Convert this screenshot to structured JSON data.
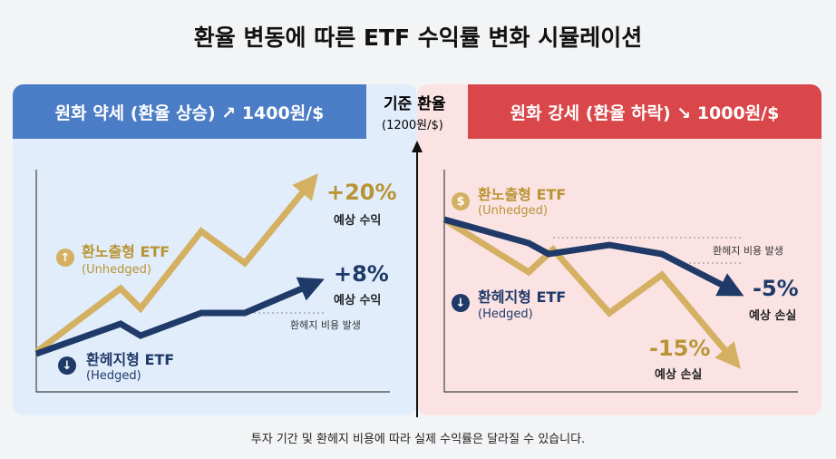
{
  "title": "환율 변동에 따른 ETF 수익률 변화 시뮬레이션",
  "left": {
    "header": "원화 약세 (환율 상승) ↗ 1400원/$",
    "unhedged": {
      "name": "환노출형 ETF",
      "en": "(Unhedged)",
      "value": "+20%",
      "caption": "예상 수익"
    },
    "hedged": {
      "name": "환헤지형 ETF",
      "en": "(Hedged)",
      "value": "+8%",
      "caption": "예상 수익"
    },
    "note": "환헤지 비용 발생"
  },
  "center": {
    "label": "기준 환율",
    "rate": "(1200원/$)"
  },
  "right": {
    "header": "원화 강세 (환율 하락) ↘ 1000원/$",
    "unhedged": {
      "name": "환노출형 ETF",
      "en": "(Unhedged)",
      "value": "-15%",
      "caption": "예상 손실"
    },
    "hedged": {
      "name": "환헤지형 ETF",
      "en": "(Hedged)",
      "value": "-5%",
      "caption": "예상 손실"
    },
    "note": "환헤지 비용 발생"
  },
  "footer": "투자 기간 및 환헤지 비용에 따라 실제 수익률은 달라질 수 있습니다.",
  "colors": {
    "unhedged": "#d4b062",
    "hedged": "#1f3a68",
    "weak_won": "#4b7cc6",
    "strong_won": "#d9474b"
  },
  "icons": {
    "left_unhedged": "up-arrow",
    "left_hedged": "down-arrow",
    "right_unhedged": "dollar",
    "right_hedged": "down-arrow"
  }
}
